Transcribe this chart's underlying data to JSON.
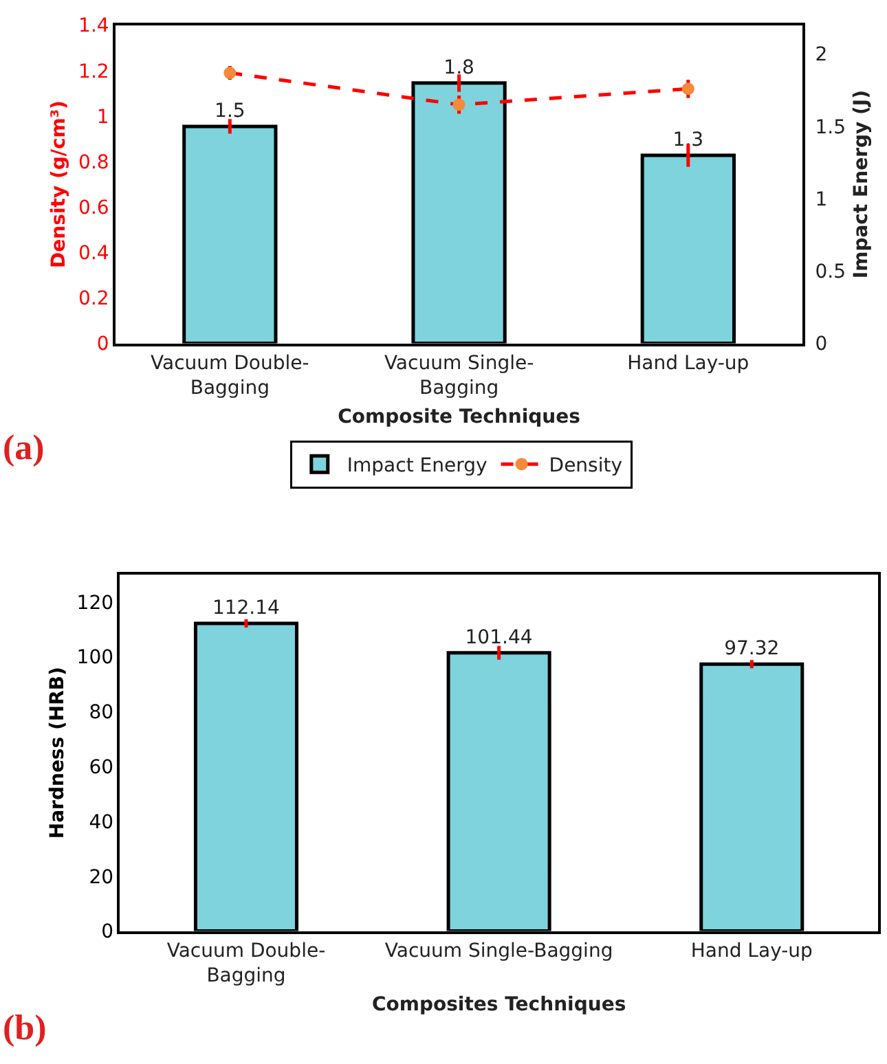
{
  "chart_data": [
    {
      "type": "bar",
      "xlabel": "Composite Techniques",
      "ylabel": "Density (g/cm³)",
      "y2label": "Impact Energy (J)",
      "categories": [
        "Vacuum Double-\nBagging",
        "Vacuum Single-\nBagging",
        "Hand Lay-up"
      ],
      "series": [
        {
          "name": "Impact Energy",
          "type": "bar",
          "axis": "y2",
          "color": "#7fd3dc",
          "values": [
            1.5,
            1.8,
            1.3
          ],
          "errors": [
            0.05,
            0.06,
            0.08
          ],
          "value_labels": [
            "1.5",
            "1.8",
            "1.3"
          ]
        },
        {
          "name": "Density",
          "type": "line",
          "axis": "y",
          "color": "#ff0000",
          "values": [
            1.19,
            1.05,
            1.12
          ],
          "errors": [
            0.03,
            0.04,
            0.04
          ],
          "marker": "circle",
          "line_style": "dashed"
        }
      ],
      "ylim": [
        0,
        1.4
      ],
      "yticks": [
        0,
        0.2,
        0.4,
        0.6,
        0.8,
        1,
        1.2,
        1.4
      ],
      "y2lim": [
        0,
        2.2
      ],
      "y2ticks": [
        0,
        0.5,
        1,
        1.5,
        2
      ],
      "grid": false,
      "legend": "bottom",
      "annotations": [
        "(a)"
      ]
    },
    {
      "type": "bar",
      "xlabel": "Composites Techniques",
      "ylabel": "Hardness (HRB)",
      "categories": [
        "Vacuum Double-\nBagging",
        "Vacuum Single-Bagging",
        "Hand Lay-up"
      ],
      "values": [
        112.14,
        101.44,
        97.32
      ],
      "errors": [
        1.5,
        2.5,
        1.5
      ],
      "color": "#7fd3dc",
      "ylim": [
        0,
        130
      ],
      "yticks": [
        0,
        20,
        40,
        60,
        80,
        100,
        120
      ],
      "grid": false,
      "legend": false,
      "data_labels": true,
      "annotations": [
        "(b)"
      ]
    }
  ]
}
